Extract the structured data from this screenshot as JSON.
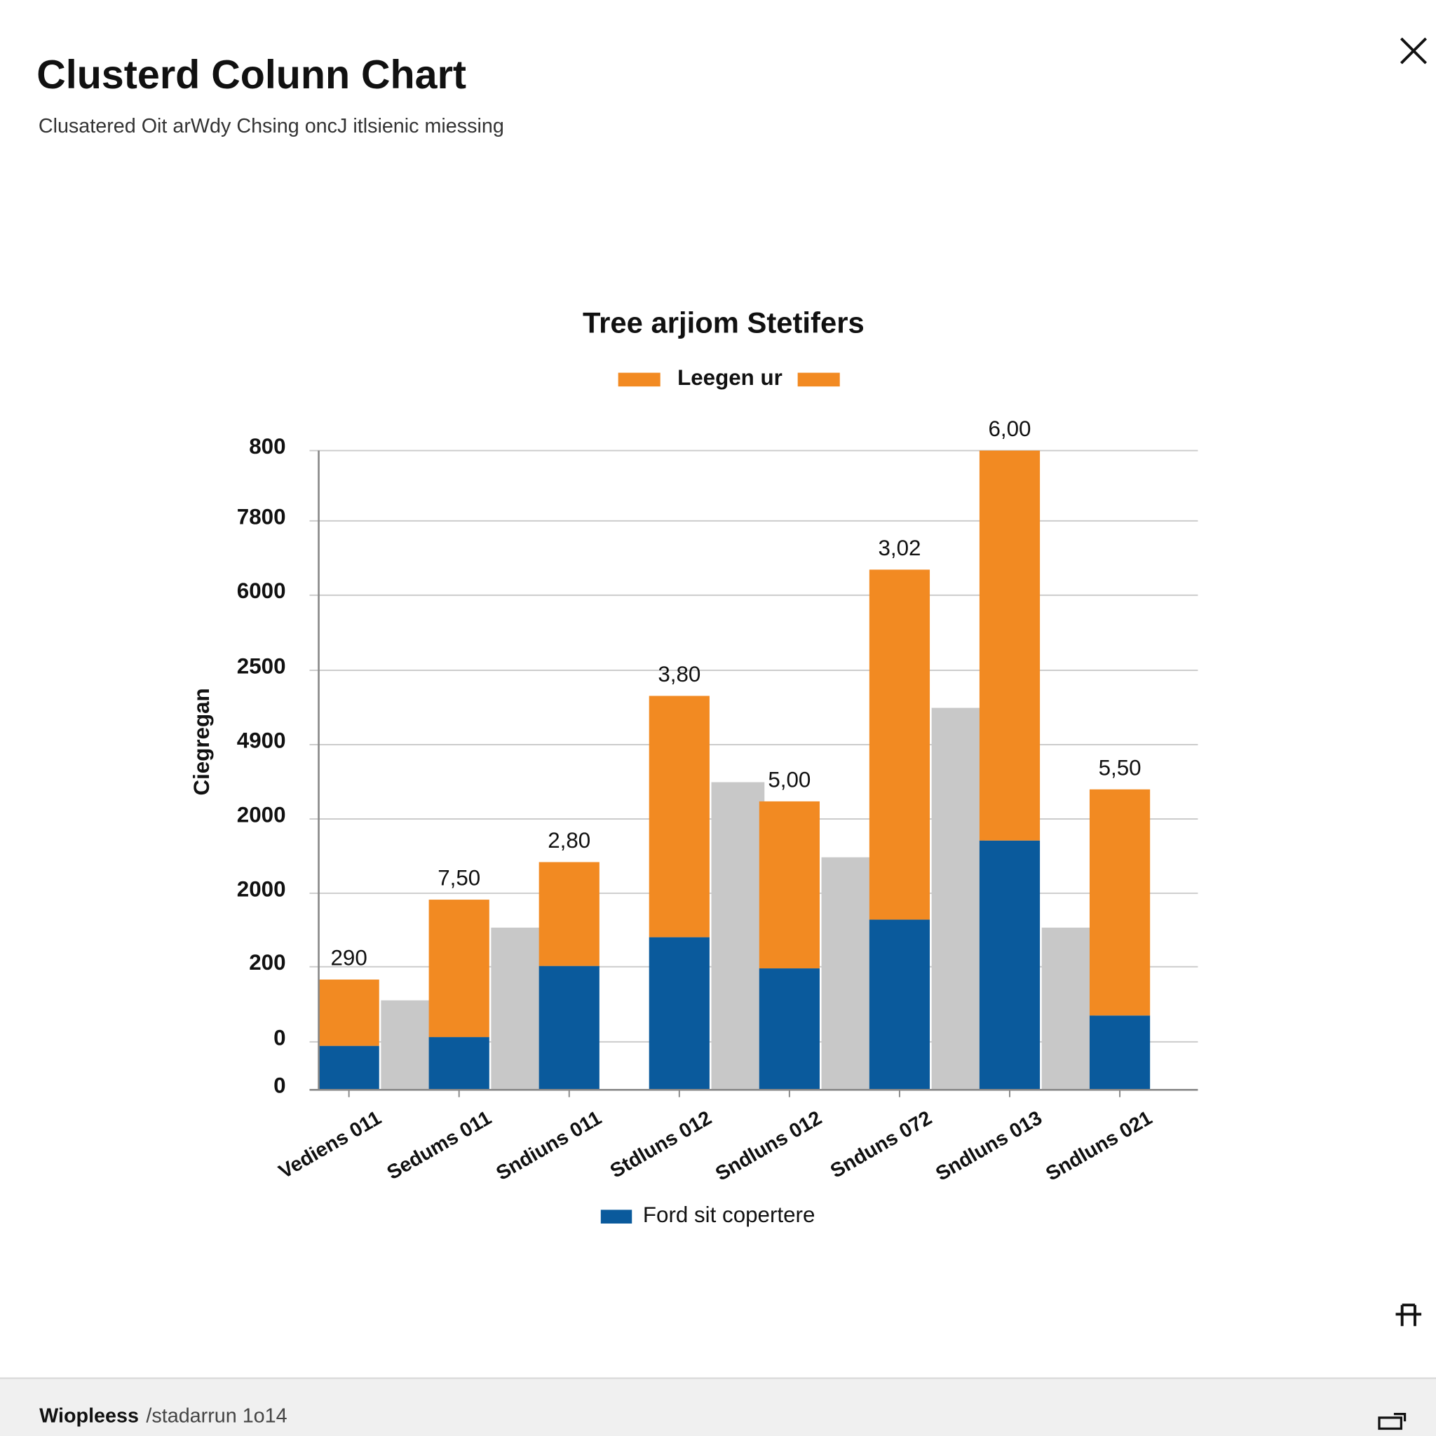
{
  "header": {
    "title": "Clusterd Colunn Chart",
    "subtitle": "Clusatered Oit arWdy Chsing oncJ itlsienic miessing"
  },
  "chart_data": {
    "type": "bar",
    "title": "Tree arjiom Stetifers",
    "y_label": "Ciegregan",
    "categories": [
      "Vediens 011",
      "Sedums 011",
      "Sndiuns 011",
      "Stdluns 012",
      "Sndluns 012",
      "Snduns 072",
      "Sndluns 013",
      "Sndluns 021"
    ],
    "series": [
      {
        "name": "Ford sit copertere",
        "color": "#0a5a9c",
        "stacked": true,
        "legend": "bottom",
        "values": [
          55,
          66,
          155,
          191,
          152,
          213,
          312,
          93
        ]
      },
      {
        "name": "Leegen ur",
        "color": "#f28a22",
        "stacked": true,
        "legend": "top",
        "values": [
          83,
          172,
          130,
          302,
          209,
          438,
          488,
          283
        ]
      },
      {
        "color": "#c8c8c8",
        "stacked": false,
        "values": [
          112,
          203,
          null,
          385,
          291,
          478,
          203,
          null
        ]
      }
    ],
    "top_labels": [
      "290",
      "7,50",
      "2,80",
      "3,80",
      "5,00",
      "3,02",
      "6,00",
      "5,50"
    ],
    "ylim": [
      0,
      800
    ],
    "yticks": [
      0,
      {
        "value": 60,
        "label": "0"
      },
      {
        "value": 154,
        "label": "200"
      },
      {
        "value": 246,
        "label": "2000"
      },
      {
        "value": 339,
        "label": "2000"
      },
      {
        "value": 432,
        "label": "4900"
      },
      {
        "value": 525,
        "label": "2500"
      },
      {
        "value": 619,
        "label": "6000"
      },
      {
        "value": 712,
        "label": "7800"
      },
      800
    ],
    "grid": true
  },
  "footer": {
    "app": "Wiopleess",
    "path": "/stadarrun 1o14"
  }
}
